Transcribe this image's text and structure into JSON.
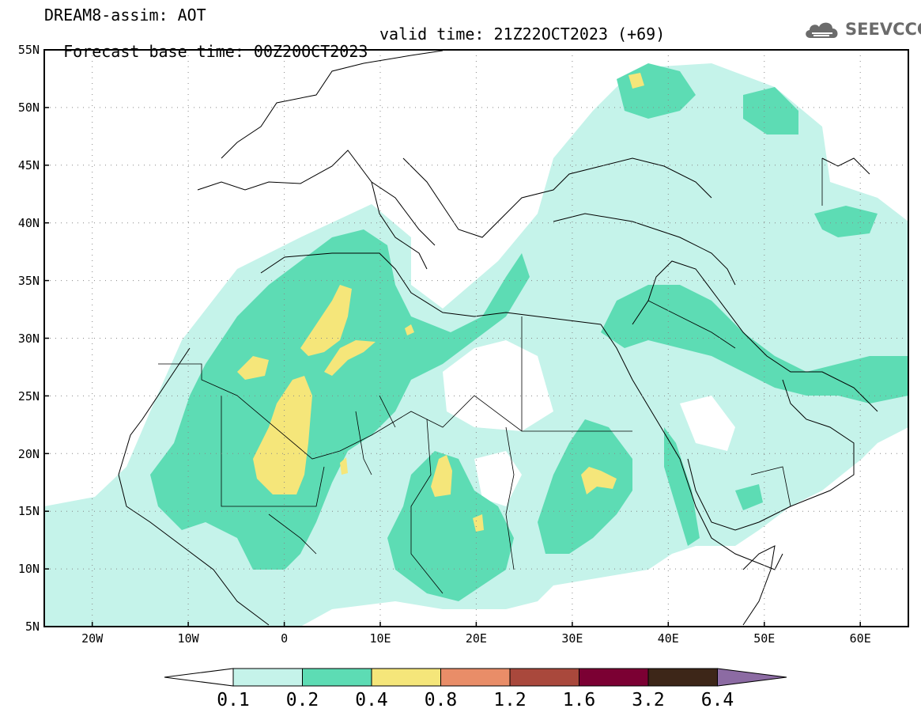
{
  "header": {
    "title": "DREAM8-assim: AOT",
    "base_time": "Forecast base time: 00Z20OCT2023",
    "valid_time": "valid time: 21Z22OCT2023 (+69)"
  },
  "logo": {
    "text": "SEEVCCC",
    "icon": "cloud-icon"
  },
  "map": {
    "lon_range": [
      -25,
      65
    ],
    "lat_range": [
      5,
      55
    ],
    "lon_ticks": [
      "20W",
      "10W",
      "0",
      "10E",
      "20E",
      "30E",
      "40E",
      "50E",
      "60E"
    ],
    "lat_ticks": [
      "55N",
      "50N",
      "45N",
      "40N",
      "35N",
      "30N",
      "25N",
      "20N",
      "15N",
      "10N",
      "5N"
    ],
    "grid": true
  },
  "legend": {
    "labels": [
      "0.1",
      "0.2",
      "0.4",
      "0.8",
      "1.2",
      "1.6",
      "3.2",
      "6.4"
    ],
    "colors": [
      "#ffffff",
      "#c5f3ea",
      "#5ddcb4",
      "#f5e67a",
      "#e98d68",
      "#a9483c",
      "#7b0033",
      "#3d2618",
      "#8c6ba3"
    ]
  }
}
